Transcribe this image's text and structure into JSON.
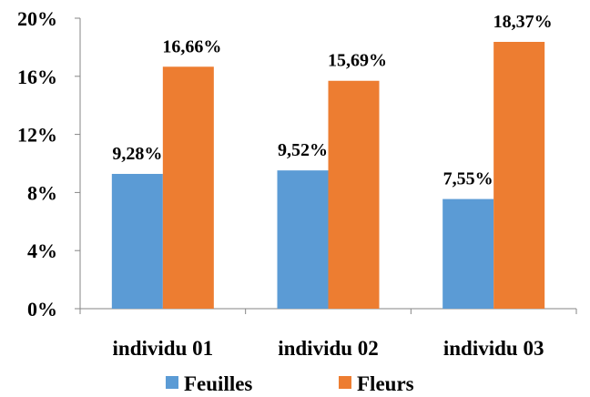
{
  "chart_data": {
    "type": "bar",
    "categories": [
      "individu 01",
      "individu 02",
      "individu 03"
    ],
    "series": [
      {
        "name": "Feuilles",
        "values": [
          9.28,
          9.52,
          7.55
        ],
        "labels": [
          "9,28%",
          "9,52%",
          "7,55%"
        ],
        "color": "#5b9bd5"
      },
      {
        "name": "Fleurs",
        "values": [
          16.66,
          15.69,
          18.37
        ],
        "labels": [
          "16,66%",
          "15,69%",
          "18,37%"
        ],
        "color": "#ed7d31"
      }
    ],
    "ylim": [
      0,
      20
    ],
    "yticks": [
      0,
      4,
      8,
      12,
      16,
      20
    ],
    "ytick_labels": [
      "0%",
      "4%",
      "8%",
      "12%",
      "16%",
      "20%"
    ],
    "grid": false,
    "legend_position": "bottom"
  }
}
